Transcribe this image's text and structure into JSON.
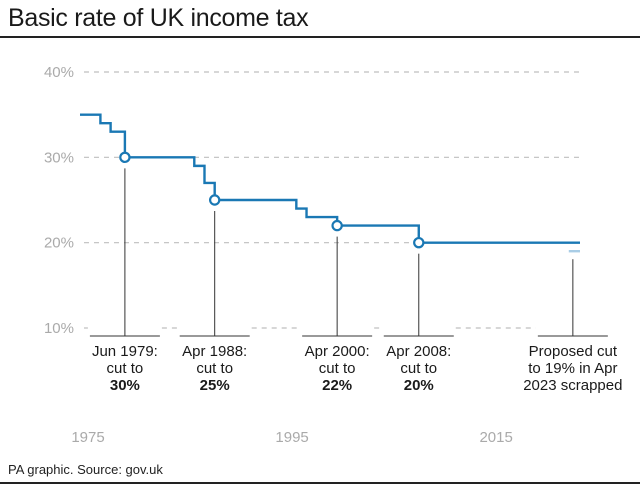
{
  "title": "Basic rate of UK income tax",
  "source": "PA graphic. Source: gov.uk",
  "colors": {
    "line": "#1a78b4",
    "proposed": "#a9cde6",
    "grid": "#bfbfbf",
    "axis_text": "#aaaaaa"
  },
  "chart_data": {
    "type": "line",
    "title": "Basic rate of UK income tax",
    "xlabel": "",
    "ylabel": "",
    "ylim": [
      8,
      42
    ],
    "xlim": [
      1975,
      2024
    ],
    "y_ticks": [
      "10%",
      "20%",
      "30%",
      "40%"
    ],
    "y_tick_values": [
      10,
      20,
      30,
      40
    ],
    "x_ticks": [
      "1975",
      "1995",
      "2015"
    ],
    "x_tick_values": [
      1975,
      1995,
      2015
    ],
    "grid": true,
    "series": [
      {
        "step": true,
        "points": [
          [
            1975.0,
            35
          ],
          [
            1977.0,
            34
          ],
          [
            1978.0,
            33
          ],
          [
            1979.4,
            30
          ],
          [
            1986.2,
            29
          ],
          [
            1987.2,
            27
          ],
          [
            1988.2,
            25
          ],
          [
            1996.2,
            24
          ],
          [
            1997.2,
            23
          ],
          [
            2000.2,
            22
          ],
          [
            2008.2,
            20
          ],
          [
            2024.0,
            20
          ]
        ]
      },
      {
        "step": true,
        "style": "proposed",
        "points": [
          [
            2022.9,
            19
          ],
          [
            2024.0,
            19
          ]
        ]
      }
    ],
    "annotations": [
      {
        "x": 1979.4,
        "y": 30,
        "marker": true,
        "lines": [
          "Jun 1979:",
          "cut to"
        ],
        "bold": "30%"
      },
      {
        "x": 1988.2,
        "y": 25,
        "marker": true,
        "lines": [
          "Apr 1988:",
          "cut to"
        ],
        "bold": "25%"
      },
      {
        "x": 2000.2,
        "y": 22,
        "marker": true,
        "lines": [
          "Apr 2000:",
          "cut to"
        ],
        "bold": "22%"
      },
      {
        "x": 2008.2,
        "y": 20,
        "marker": true,
        "lines": [
          "Apr 2008:",
          "cut to"
        ],
        "bold": "20%"
      },
      {
        "x": 2023.3,
        "y": 19,
        "marker": false,
        "lines": [
          "Proposed cut",
          "to 19% in Apr",
          "2023 scrapped"
        ],
        "bold": ""
      }
    ]
  }
}
